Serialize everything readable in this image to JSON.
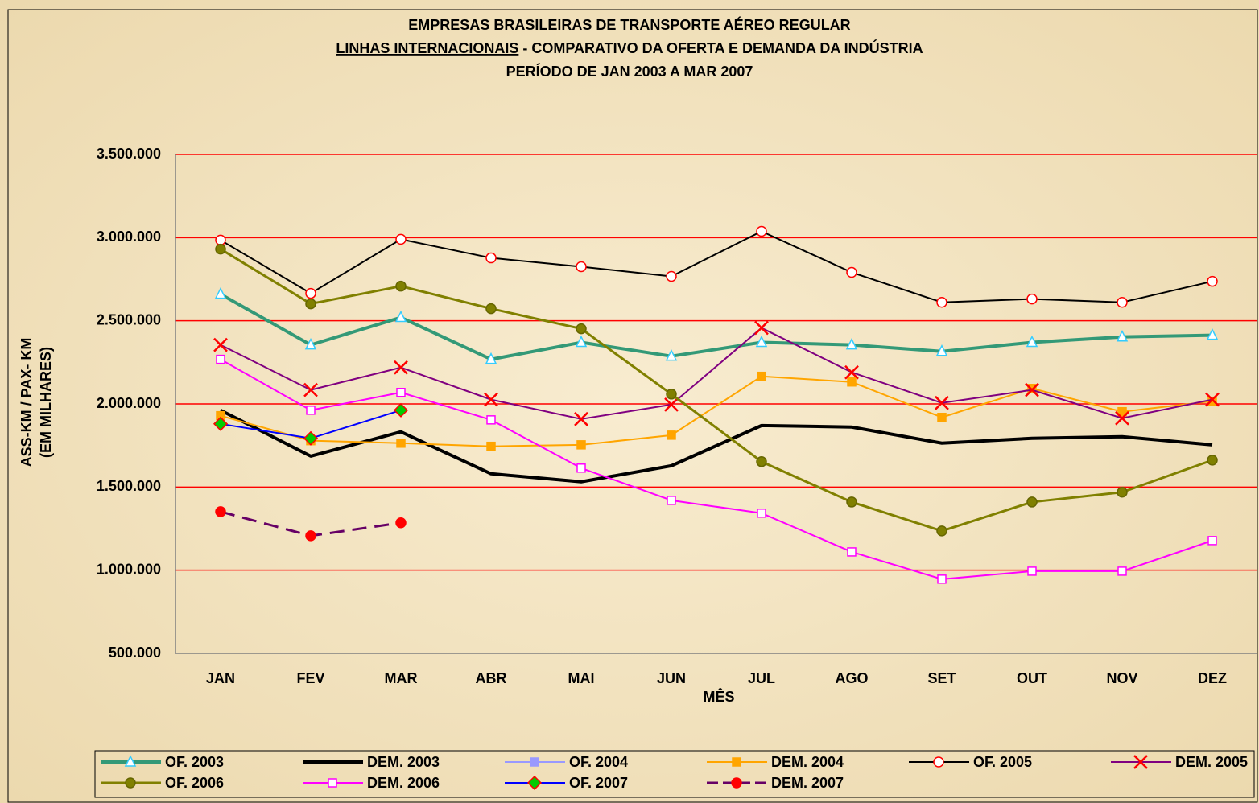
{
  "chart_data": {
    "type": "line",
    "title": "EMPRESAS BRASILEIRAS DE TRANSPORTE AÉREO REGULAR",
    "subtitle_parts": [
      "LINHAS INTERNACIONAIS",
      " - COMPARATIVO DA OFERTA E DEMANDA DA INDÚSTRIA"
    ],
    "period": "PERÍODO DE JAN 2003 A MAR 2007",
    "xlabel": "MÊS",
    "ylabel": [
      "ASS-KM / PAX- KM",
      "(EM MILHARES)"
    ],
    "categories": [
      "JAN",
      "FEV",
      "MAR",
      "ABR",
      "MAI",
      "JUN",
      "JUL",
      "AGO",
      "SET",
      "OUT",
      "NOV",
      "DEZ"
    ],
    "ylim": [
      500000,
      3500000
    ],
    "yticks": [
      {
        "value": 500000,
        "label": "500.000"
      },
      {
        "value": 1000000,
        "label": "1.000.000"
      },
      {
        "value": 1500000,
        "label": "1.500.000"
      },
      {
        "value": 2000000,
        "label": "2.000.000"
      },
      {
        "value": 2500000,
        "label": "2.500.000"
      },
      {
        "value": 3000000,
        "label": "3.000.000"
      },
      {
        "value": 3500000,
        "label": "3.500.000"
      }
    ],
    "grid": true,
    "series": [
      {
        "name": "OF. 2003",
        "color": "#339977",
        "line_width": 4,
        "marker": "triangle",
        "marker_color": "#33ccff",
        "marker_fill": "#ffffff",
        "values": [
          2660000,
          2355000,
          2520000,
          2268000,
          2370000,
          2287000,
          2370000,
          2355000,
          2316000,
          2370000,
          2403000,
          2413000
        ]
      },
      {
        "name": "DEM. 2003",
        "color": "#000000",
        "line_width": 4,
        "marker": "none",
        "values": [
          1962000,
          1686000,
          1832000,
          1580000,
          1532000,
          1628000,
          1870000,
          1861000,
          1764000,
          1793000,
          1803000,
          1754000
        ]
      },
      {
        "name": "OF. 2004",
        "color": "#9999ff",
        "line_width": 2,
        "marker": "square",
        "marker_color": "#9999ff",
        "marker_fill": "#9999ff",
        "values": [
          null,
          null,
          null,
          null,
          null,
          null,
          null,
          null,
          null,
          null,
          null,
          null
        ]
      },
      {
        "name": "DEM. 2004",
        "color": "#ffa500",
        "line_width": 2,
        "marker": "square",
        "marker_color": "#ffa500",
        "marker_fill": "#ffa500",
        "values": [
          1929000,
          1779000,
          1764000,
          1745000,
          1754000,
          1812000,
          2166000,
          2132000,
          1919000,
          2093000,
          1953000,
          2016000
        ]
      },
      {
        "name": "OF. 2005",
        "color": "#000000",
        "line_width": 2,
        "marker": "circle",
        "marker_color": "#ff0000",
        "marker_fill": "#ffffff",
        "values": [
          2985000,
          2665000,
          2990000,
          2878000,
          2825000,
          2767000,
          3038000,
          2791000,
          2611000,
          2631000,
          2611000,
          2737000
        ]
      },
      {
        "name": "DEM. 2005",
        "color": "#800080",
        "line_width": 2,
        "marker": "x",
        "marker_color": "#ff0000",
        "marker_fill": "none",
        "values": [
          2355000,
          2084000,
          2219000,
          2026000,
          1909000,
          1996000,
          2457000,
          2190000,
          2006000,
          2084000,
          1914000,
          2026000
        ]
      },
      {
        "name": "OF. 2006",
        "color": "#808000",
        "line_width": 3,
        "marker": "circle",
        "marker_color": "#666600",
        "marker_fill": "#808000",
        "values": [
          2931000,
          2602000,
          2708000,
          2573000,
          2452000,
          2059000,
          1653000,
          1410000,
          1236000,
          1410000,
          1469000,
          1662000
        ]
      },
      {
        "name": "DEM. 2006",
        "color": "#ff00ff",
        "line_width": 2,
        "marker": "square",
        "marker_color": "#ff00ff",
        "marker_fill": "#ffffff",
        "values": [
          2268000,
          1962000,
          2069000,
          1904000,
          1614000,
          1420000,
          1343000,
          1110000,
          946000,
          994000,
          994000,
          1178000
        ]
      },
      {
        "name": "OF. 2007",
        "color": "#0000ff",
        "line_width": 2,
        "marker": "diamond",
        "marker_color": "#ff0000",
        "marker_fill": "#00cc00",
        "values": [
          1880000,
          1793000,
          1962000,
          null,
          null,
          null,
          null,
          null,
          null,
          null,
          null,
          null
        ]
      },
      {
        "name": "DEM. 2007",
        "color": "#660066",
        "line_width": 3,
        "dash": true,
        "marker": "circle",
        "marker_color": "#ff0000",
        "marker_fill": "#ff0000",
        "values": [
          1352000,
          1207000,
          1285000,
          null,
          null,
          null,
          null,
          null,
          null,
          null,
          null,
          null
        ]
      }
    ]
  }
}
